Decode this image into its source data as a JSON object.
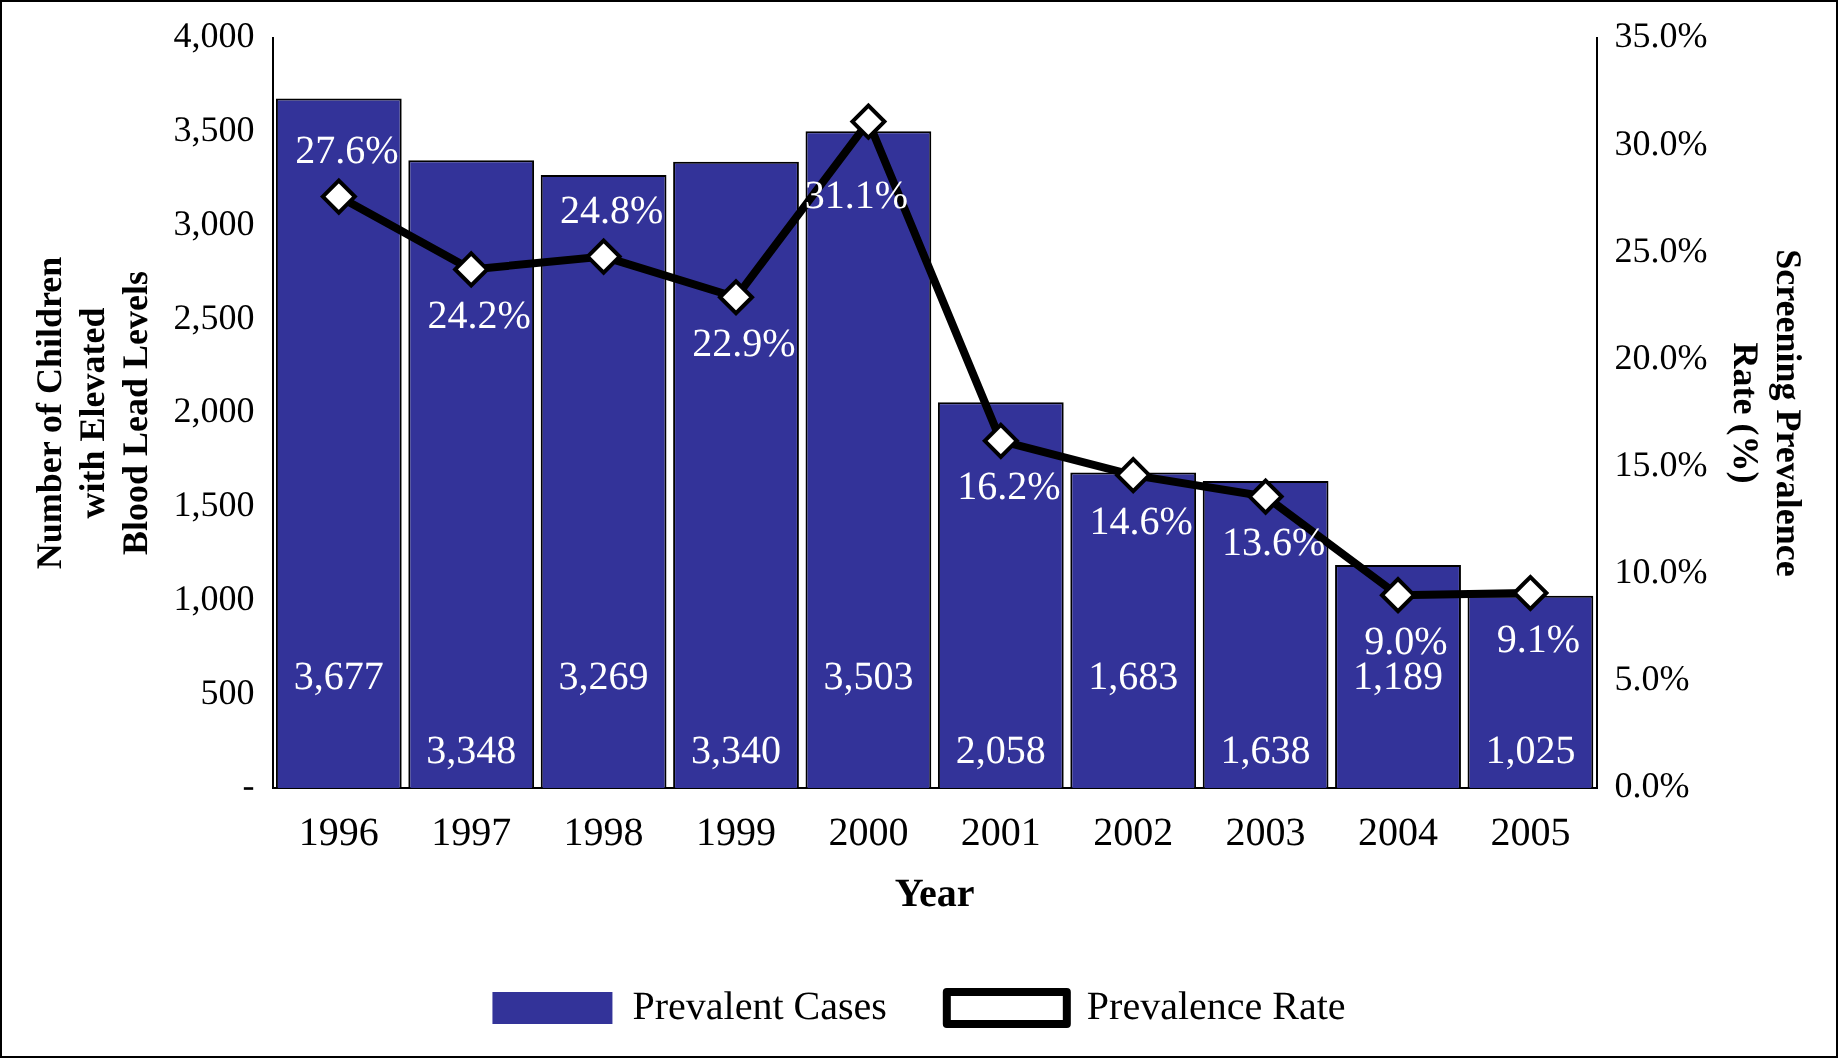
{
  "chart_data": {
    "type": "bar",
    "xlabel": "Year",
    "ylabel": "Number of Children\nwith Elevated\nBlood Lead Levels",
    "y2label": "Screening Prevalence\nRate (%)",
    "categories": [
      "1996",
      "1997",
      "1998",
      "1999",
      "2000",
      "2001",
      "2002",
      "2003",
      "2004",
      "2005"
    ],
    "series": [
      {
        "name": "Prevalent Cases",
        "color": "#333399",
        "values": [
          3677,
          3348,
          3269,
          3340,
          3503,
          2058,
          1683,
          1638,
          1189,
          1025
        ],
        "value_labels": [
          "3,677",
          "3,348",
          "3,269",
          "3,340",
          "3,503",
          "2,058",
          "1,683",
          "1,638",
          "1,189",
          "1,025"
        ]
      },
      {
        "name": "Prevalence Rate",
        "type": "line",
        "axis": "y2",
        "color": "#000000",
        "marker": "diamond",
        "values": [
          27.6,
          24.2,
          24.8,
          22.9,
          31.1,
          16.2,
          14.6,
          13.6,
          9.0,
          9.1
        ],
        "value_labels": [
          "27.6%",
          "24.2%",
          "24.8%",
          "22.9%",
          "31.1%",
          "16.2%",
          "14.6%",
          "13.6%",
          "9.0%",
          "9.1%"
        ]
      }
    ],
    "ylim": [
      0,
      4000
    ],
    "yticks": [
      {
        "value": 0,
        "label": "-"
      },
      {
        "value": 500,
        "label": "500"
      },
      {
        "value": 1000,
        "label": "1,000"
      },
      {
        "value": 1500,
        "label": "1,500"
      },
      {
        "value": 2000,
        "label": "2,000"
      },
      {
        "value": 2500,
        "label": "2,500"
      },
      {
        "value": 3000,
        "label": "3,000"
      },
      {
        "value": 3500,
        "label": "3,500"
      },
      {
        "value": 4000,
        "label": "4,000"
      }
    ],
    "y2lim": [
      0,
      35
    ],
    "y2ticks": [
      {
        "value": 0,
        "label": "0.0%"
      },
      {
        "value": 5,
        "label": "5.0%"
      },
      {
        "value": 10,
        "label": "10.0%"
      },
      {
        "value": 15,
        "label": "15.0%"
      },
      {
        "value": 20,
        "label": "20.0%"
      },
      {
        "value": 25,
        "label": "25.0%"
      },
      {
        "value": 30,
        "label": "30.0%"
      },
      {
        "value": 35,
        "label": "35.0%"
      }
    ],
    "grid": false,
    "legend": "bottom"
  }
}
